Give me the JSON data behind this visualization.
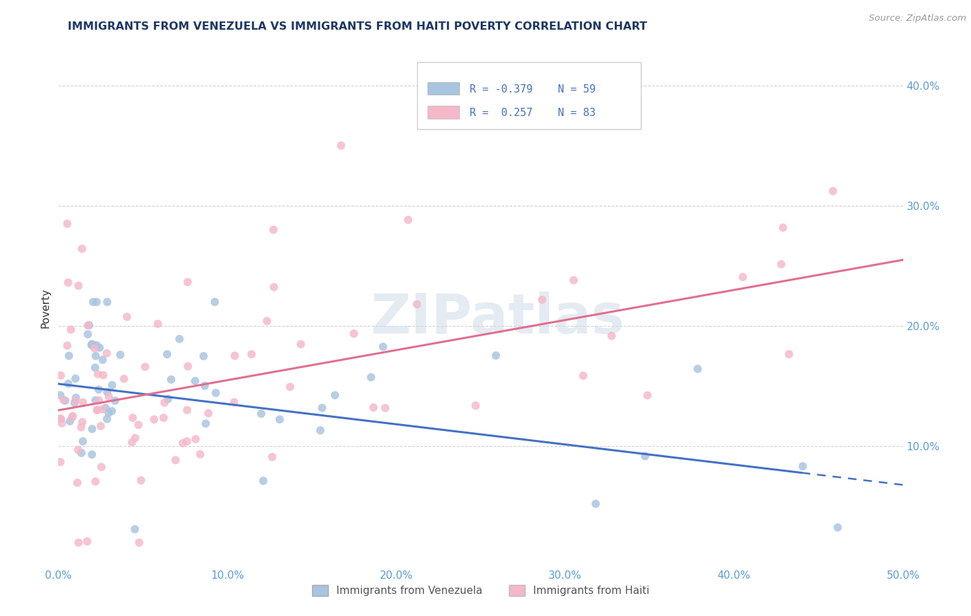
{
  "title": "IMMIGRANTS FROM VENEZUELA VS IMMIGRANTS FROM HAITI POVERTY CORRELATION CHART",
  "source": "Source: ZipAtlas.com",
  "ylabel": "Poverty",
  "x_tick_labels": [
    "0.0%",
    "10.0%",
    "20.0%",
    "30.0%",
    "40.0%",
    "50.0%"
  ],
  "y_tick_labels_right": [
    "",
    "10.0%",
    "20.0%",
    "30.0%",
    "40.0%"
  ],
  "xlim": [
    0,
    50
  ],
  "ylim": [
    0,
    43
  ],
  "legend_labels": [
    "Immigrants from Venezuela",
    "Immigrants from Haiti"
  ],
  "legend_R": [
    "-0.379",
    " 0.257"
  ],
  "legend_N": [
    "59",
    "83"
  ],
  "color_venezuela": "#a8c4e0",
  "color_haiti": "#f4b8c8",
  "color_venezuela_line": "#4472c4",
  "color_haiti_line": "#e07090",
  "background_color": "#ffffff",
  "watermark": "ZIPatlas",
  "ven_line_x0": 0,
  "ven_line_y0": 15.2,
  "ven_line_x1": 50,
  "ven_line_y1": 6.8,
  "ven_solid_end": 44,
  "hai_line_x0": 0,
  "hai_line_y0": 13.0,
  "hai_line_x1": 50,
  "hai_line_y1": 25.5
}
